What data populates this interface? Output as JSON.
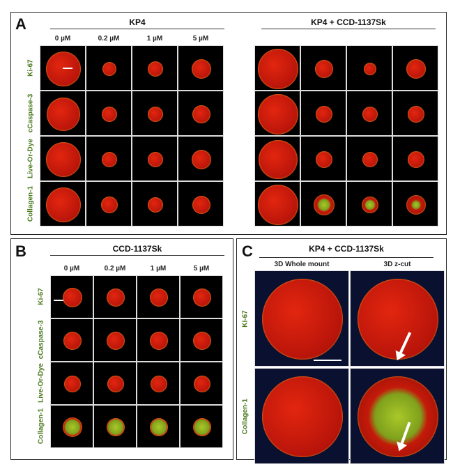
{
  "panels": {
    "A": {
      "label": "A",
      "group_left": "KP4",
      "group_right": "KP4 + CCD-1137Sk",
      "concentrations": [
        "0 µM",
        "0.2 µM",
        "1 µM",
        "5 µM"
      ],
      "rows": [
        "Ki-67",
        "cCaspase-3",
        "Live-Or-Dye",
        "Collagen-1"
      ]
    },
    "B": {
      "label": "B",
      "group": "CCD-1137Sk",
      "concentrations": [
        "0 µM",
        "0.2 µM",
        "1 µM",
        "5 µM"
      ],
      "rows": [
        "Ki-67",
        "cCaspase-3",
        "Live-Or-Dye",
        "Collagen-1"
      ]
    },
    "C": {
      "label": "C",
      "group": "KP4 + CCD-1137Sk",
      "columns": [
        "3D Whole mount",
        "3D z-cut"
      ],
      "rows": [
        "Ki-67",
        "Collagen-1"
      ]
    }
  },
  "colors": {
    "nuclei": "#d01a0a",
    "marker": "#9be02a",
    "row_label": "#4a7a1e"
  }
}
